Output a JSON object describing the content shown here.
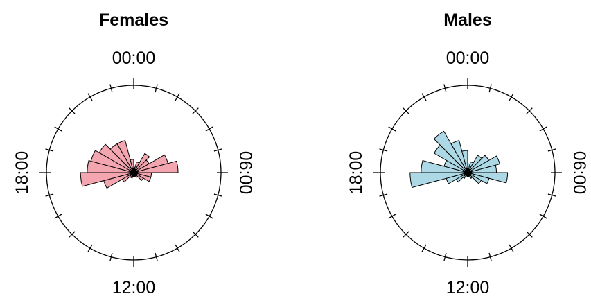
{
  "chart_data": [
    {
      "type": "rose",
      "title": "Females",
      "fill_color": "#F4A6B0",
      "outline_color": "#000000",
      "angle_labels": [
        "00:00",
        "06:00",
        "12:00",
        "18:00"
      ],
      "bin_width_hours": 1,
      "x_hours": [
        0,
        1,
        2,
        3,
        4,
        5,
        6,
        7,
        8,
        9,
        10,
        11,
        12,
        13,
        14,
        15,
        16,
        17,
        18,
        19,
        20,
        21,
        22,
        23
      ],
      "values": [
        0.05,
        0.1,
        0.2,
        0.16,
        0.32,
        0.4,
        0.16,
        0.16,
        0.1,
        0.05,
        0.04,
        0.03,
        0.03,
        0.05,
        0.05,
        0.12,
        0.28,
        0.48,
        0.42,
        0.4,
        0.36,
        0.3,
        0.3,
        0.12
      ]
    },
    {
      "type": "rose",
      "title": "Males",
      "fill_color": "#ADD8E6",
      "outline_color": "#000000",
      "angle_labels": [
        "00:00",
        "06:00",
        "12:00",
        "18:00"
      ],
      "bin_width_hours": 1,
      "x_hours": [
        0,
        1,
        2,
        3,
        4,
        5,
        6,
        7,
        8,
        9,
        10,
        11,
        12,
        13,
        14,
        15,
        16,
        17,
        18,
        19,
        20,
        21,
        22,
        23
      ],
      "values": [
        0.08,
        0.1,
        0.18,
        0.22,
        0.3,
        0.26,
        0.36,
        0.2,
        0.14,
        0.06,
        0.04,
        0.03,
        0.03,
        0.03,
        0.06,
        0.12,
        0.2,
        0.52,
        0.42,
        0.22,
        0.35,
        0.43,
        0.3,
        0.2
      ]
    }
  ]
}
